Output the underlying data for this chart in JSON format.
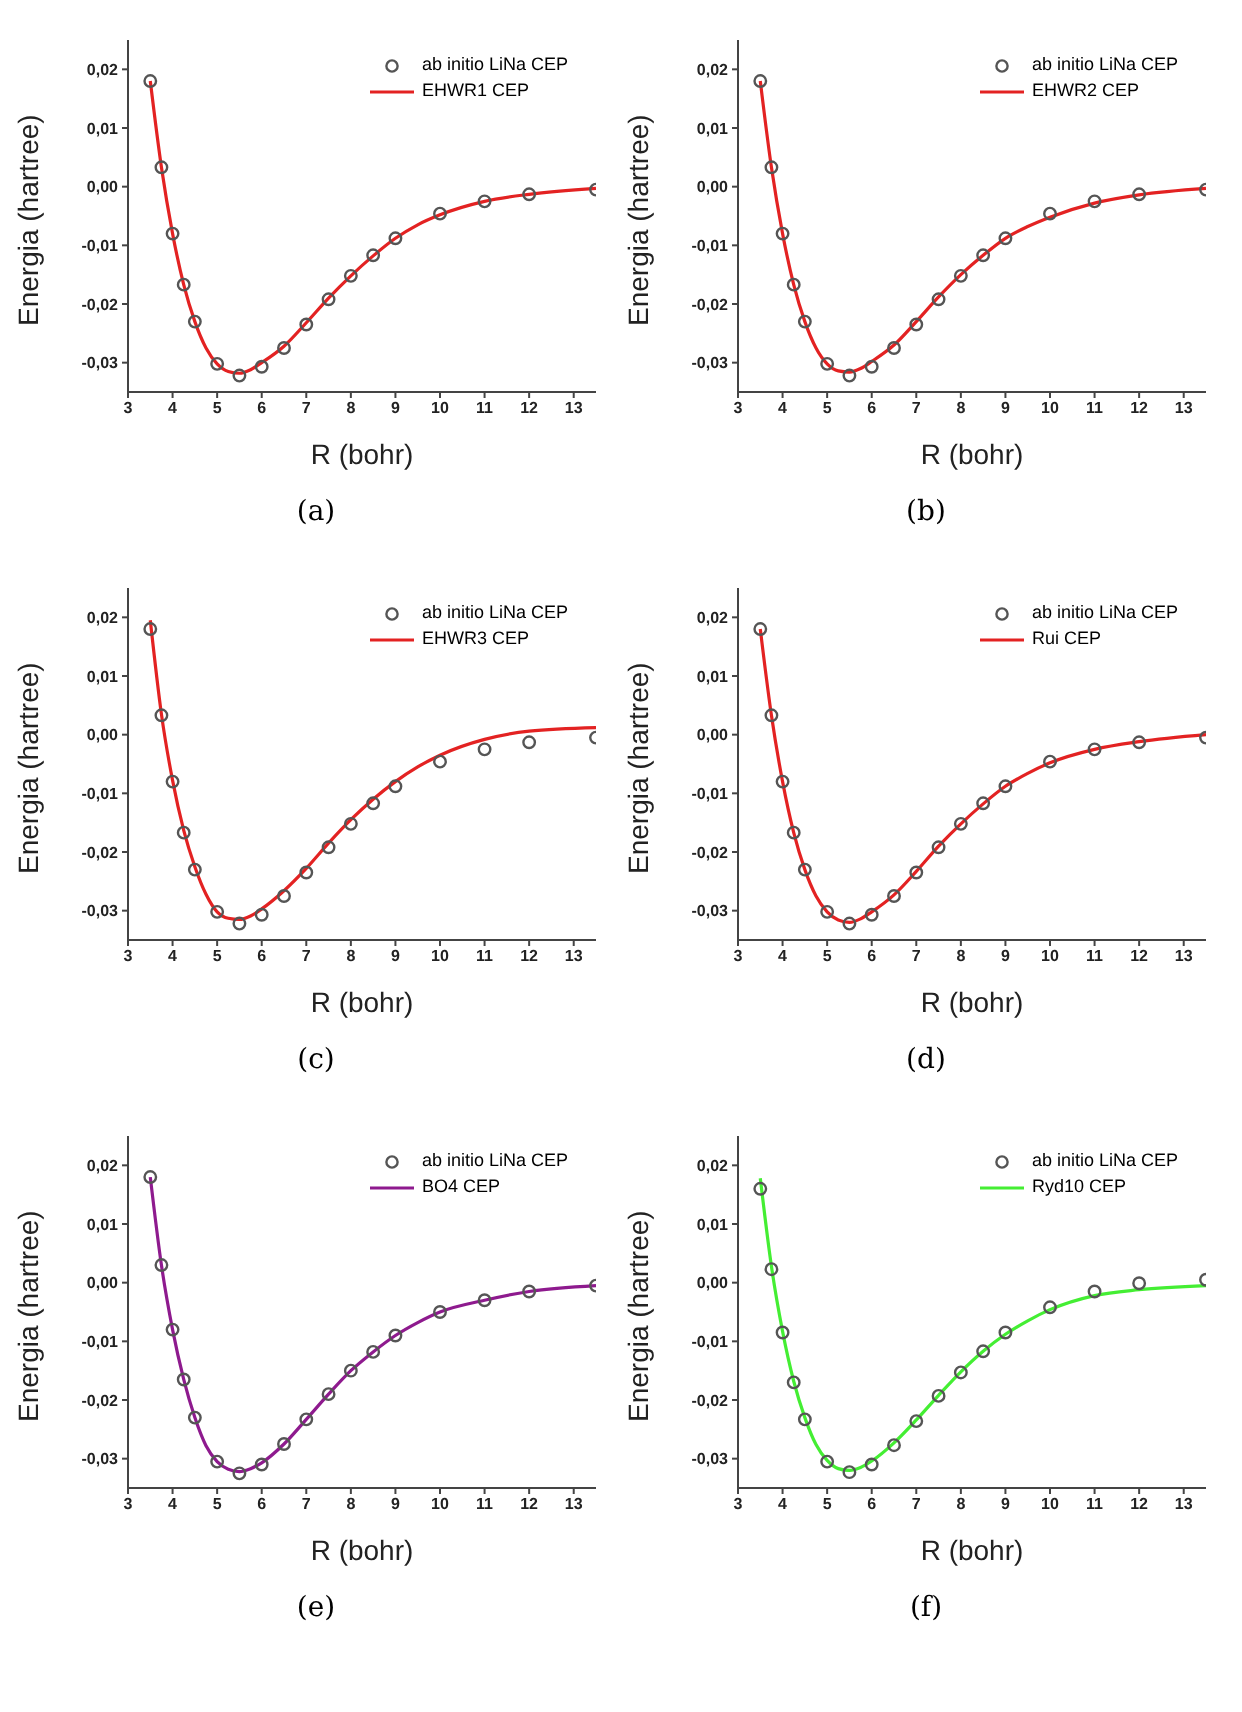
{
  "chart_data": [
    {
      "type": "line",
      "xlabel": "R (bohr)",
      "ylabel": "Energia (hartree)",
      "annotations": [
        "(a)"
      ],
      "xlim": [
        3,
        13.5
      ],
      "xticks": [
        3,
        4,
        5,
        6,
        7,
        8,
        9,
        10,
        11,
        12,
        13
      ],
      "ylim": [
        -0.035,
        0.025
      ],
      "yticks": [
        {
          "value": -0.03,
          "label": "-0,03"
        },
        {
          "value": -0.02,
          "label": "-0,02"
        },
        {
          "value": -0.01,
          "label": "-0,01"
        },
        {
          "value": 0,
          "label": "0,00"
        },
        {
          "value": 0.01,
          "label": "0,01"
        },
        {
          "value": 0.02,
          "label": "0,02"
        }
      ],
      "grid": false,
      "legend": "top right",
      "series": [
        {
          "name": "ab initio LiNa CEP",
          "type": "scatter",
          "marker": "circle",
          "color": "#555555",
          "x": [
            3.5,
            3.75,
            4,
            4.25,
            4.5,
            5,
            5.5,
            6,
            6.5,
            7,
            7.5,
            8,
            8.5,
            9,
            10,
            11,
            12,
            13.5
          ],
          "values": [
            0.018,
            0.0033,
            -0.008,
            -0.0167,
            -0.023,
            -0.0302,
            -0.0322,
            -0.0307,
            -0.0275,
            -0.0235,
            -0.0192,
            -0.0152,
            -0.0117,
            -0.0088,
            -0.0046,
            -0.0025,
            -0.0013,
            -0.0005
          ]
        },
        {
          "name": "EHWR1 CEP",
          "type": "line",
          "marker": "none",
          "line_style": "solid",
          "color": "#e32222",
          "x": [
            3.5,
            3.75,
            4,
            4.25,
            4.5,
            4.75,
            5,
            5.25,
            5.5,
            5.75,
            6,
            6.5,
            7,
            7.5,
            8,
            8.5,
            9,
            9.5,
            10,
            11,
            12,
            13.5
          ],
          "values": [
            0.018,
            0.0033,
            -0.008,
            -0.0167,
            -0.023,
            -0.0275,
            -0.0302,
            -0.0315,
            -0.0318,
            -0.0312,
            -0.03,
            -0.0272,
            -0.0232,
            -0.019,
            -0.0152,
            -0.0118,
            -0.0088,
            -0.0065,
            -0.0048,
            -0.0025,
            -0.0013,
            -0.0003
          ]
        }
      ]
    },
    {
      "type": "line",
      "xlabel": "R (bohr)",
      "ylabel": "Energia (hartree)",
      "annotations": [
        "(b)"
      ],
      "xlim": [
        3,
        13.5
      ],
      "xticks": [
        3,
        4,
        5,
        6,
        7,
        8,
        9,
        10,
        11,
        12,
        13
      ],
      "ylim": [
        -0.035,
        0.025
      ],
      "yticks": [
        {
          "value": -0.03,
          "label": "-0,03"
        },
        {
          "value": -0.02,
          "label": "-0,02"
        },
        {
          "value": -0.01,
          "label": "-0,01"
        },
        {
          "value": 0,
          "label": "0,00"
        },
        {
          "value": 0.01,
          "label": "0,01"
        },
        {
          "value": 0.02,
          "label": "0,02"
        }
      ],
      "grid": false,
      "legend": "top right",
      "series": [
        {
          "name": "ab initio LiNa CEP",
          "type": "scatter",
          "marker": "circle",
          "color": "#555555",
          "x": [
            3.5,
            3.75,
            4,
            4.25,
            4.5,
            5,
            5.5,
            6,
            6.5,
            7,
            7.5,
            8,
            8.5,
            9,
            10,
            11,
            12,
            13.5
          ],
          "values": [
            0.018,
            0.0033,
            -0.008,
            -0.0167,
            -0.023,
            -0.0302,
            -0.0322,
            -0.0307,
            -0.0275,
            -0.0235,
            -0.0192,
            -0.0152,
            -0.0117,
            -0.0088,
            -0.0046,
            -0.0025,
            -0.0013,
            -0.0005
          ]
        },
        {
          "name": "EHWR2 CEP",
          "type": "line",
          "marker": "none",
          "line_style": "solid",
          "color": "#e32222",
          "x": [
            3.5,
            3.75,
            4,
            4.25,
            4.5,
            4.75,
            5,
            5.25,
            5.5,
            5.75,
            6,
            6.5,
            7,
            7.5,
            8,
            8.5,
            9,
            9.5,
            10,
            11,
            12,
            13.5
          ],
          "values": [
            0.018,
            0.0033,
            -0.008,
            -0.0167,
            -0.023,
            -0.0275,
            -0.0302,
            -0.0314,
            -0.0316,
            -0.031,
            -0.0298,
            -0.027,
            -0.023,
            -0.0188,
            -0.015,
            -0.0117,
            -0.0088,
            -0.0068,
            -0.0052,
            -0.0028,
            -0.0014,
            -0.0003
          ]
        }
      ]
    },
    {
      "type": "line",
      "xlabel": "R (bohr)",
      "ylabel": "Energia (hartree)",
      "annotations": [
        "(c)"
      ],
      "xlim": [
        3,
        13.5
      ],
      "xticks": [
        3,
        4,
        5,
        6,
        7,
        8,
        9,
        10,
        11,
        12,
        13
      ],
      "ylim": [
        -0.035,
        0.025
      ],
      "yticks": [
        {
          "value": -0.03,
          "label": "-0,03"
        },
        {
          "value": -0.02,
          "label": "-0,02"
        },
        {
          "value": -0.01,
          "label": "-0,01"
        },
        {
          "value": 0,
          "label": "0,00"
        },
        {
          "value": 0.01,
          "label": "0,01"
        },
        {
          "value": 0.02,
          "label": "0,02"
        }
      ],
      "grid": false,
      "legend": "top right",
      "series": [
        {
          "name": "ab initio LiNa CEP",
          "type": "scatter",
          "marker": "circle",
          "color": "#555555",
          "x": [
            3.5,
            3.75,
            4,
            4.25,
            4.5,
            5,
            5.5,
            6,
            6.5,
            7,
            7.5,
            8,
            8.5,
            9,
            10,
            11,
            12,
            13.5
          ],
          "values": [
            0.018,
            0.0033,
            -0.008,
            -0.0167,
            -0.023,
            -0.0302,
            -0.0322,
            -0.0307,
            -0.0275,
            -0.0235,
            -0.0192,
            -0.0152,
            -0.0117,
            -0.0088,
            -0.0046,
            -0.0025,
            -0.0013,
            -0.0005
          ]
        },
        {
          "name": "EHWR3 CEP",
          "type": "line",
          "marker": "none",
          "line_style": "solid",
          "color": "#e32222",
          "x": [
            3.5,
            3.75,
            4,
            4.25,
            4.5,
            4.75,
            5,
            5.25,
            5.5,
            5.75,
            6,
            6.5,
            7,
            7.5,
            8,
            8.5,
            9,
            9.5,
            10,
            11,
            12,
            13.5
          ],
          "values": [
            0.0195,
            0.0035,
            -0.0078,
            -0.0163,
            -0.0225,
            -0.0272,
            -0.0302,
            -0.0313,
            -0.0315,
            -0.0309,
            -0.0297,
            -0.0266,
            -0.0228,
            -0.0185,
            -0.0145,
            -0.011,
            -0.008,
            -0.0055,
            -0.0035,
            -0.0008,
            0.0006,
            0.0012
          ]
        }
      ]
    },
    {
      "type": "line",
      "xlabel": "R (bohr)",
      "ylabel": "Energia (hartree)",
      "annotations": [
        "(d)"
      ],
      "xlim": [
        3,
        13.5
      ],
      "xticks": [
        3,
        4,
        5,
        6,
        7,
        8,
        9,
        10,
        11,
        12,
        13
      ],
      "ylim": [
        -0.035,
        0.025
      ],
      "yticks": [
        {
          "value": -0.03,
          "label": "-0,03"
        },
        {
          "value": -0.02,
          "label": "-0,02"
        },
        {
          "value": -0.01,
          "label": "-0,01"
        },
        {
          "value": 0,
          "label": "0,00"
        },
        {
          "value": 0.01,
          "label": "0,01"
        },
        {
          "value": 0.02,
          "label": "0,02"
        }
      ],
      "grid": false,
      "legend": "top right",
      "series": [
        {
          "name": "ab initio LiNa CEP",
          "type": "scatter",
          "marker": "circle",
          "color": "#555555",
          "x": [
            3.5,
            3.75,
            4,
            4.25,
            4.5,
            5,
            5.5,
            6,
            6.5,
            7,
            7.5,
            8,
            8.5,
            9,
            10,
            11,
            12,
            13.5
          ],
          "values": [
            0.018,
            0.0033,
            -0.008,
            -0.0167,
            -0.023,
            -0.0302,
            -0.0322,
            -0.0307,
            -0.0275,
            -0.0235,
            -0.0192,
            -0.0152,
            -0.0117,
            -0.0088,
            -0.0046,
            -0.0025,
            -0.0013,
            -0.0005
          ]
        },
        {
          "name": "Rui CEP",
          "type": "line",
          "marker": "none",
          "line_style": "solid",
          "color": "#e32222",
          "x": [
            3.5,
            3.75,
            4,
            4.25,
            4.5,
            4.75,
            5,
            5.25,
            5.5,
            5.75,
            6,
            6.5,
            7,
            7.5,
            8,
            8.5,
            9,
            9.5,
            10,
            11,
            12,
            13.5
          ],
          "values": [
            0.018,
            0.0033,
            -0.008,
            -0.0167,
            -0.023,
            -0.0275,
            -0.0302,
            -0.0316,
            -0.032,
            -0.0314,
            -0.0302,
            -0.0273,
            -0.0233,
            -0.019,
            -0.0152,
            -0.0118,
            -0.0088,
            -0.0066,
            -0.0048,
            -0.0025,
            -0.0012,
            0
          ]
        }
      ]
    },
    {
      "type": "line",
      "xlabel": "R (bohr)",
      "ylabel": "Energia (hartree)",
      "annotations": [
        "(e)"
      ],
      "xlim": [
        3,
        13.5
      ],
      "xticks": [
        3,
        4,
        5,
        6,
        7,
        8,
        9,
        10,
        11,
        12,
        13
      ],
      "ylim": [
        -0.035,
        0.025
      ],
      "yticks": [
        {
          "value": -0.03,
          "label": "-0,03"
        },
        {
          "value": -0.02,
          "label": "-0,02"
        },
        {
          "value": -0.01,
          "label": "-0,01"
        },
        {
          "value": 0,
          "label": "0,00"
        },
        {
          "value": 0.01,
          "label": "0,01"
        },
        {
          "value": 0.02,
          "label": "0,02"
        }
      ],
      "grid": false,
      "legend": "top right",
      "series": [
        {
          "name": "ab initio LiNa CEP",
          "type": "scatter",
          "marker": "circle",
          "color": "#555555",
          "x": [
            3.5,
            3.75,
            4,
            4.25,
            4.5,
            5,
            5.5,
            6,
            6.5,
            7,
            7.5,
            8,
            8.5,
            9,
            10,
            11,
            12,
            13.5
          ],
          "values": [
            0.018,
            0.003,
            -0.008,
            -0.0165,
            -0.023,
            -0.0305,
            -0.0325,
            -0.031,
            -0.0275,
            -0.0233,
            -0.019,
            -0.015,
            -0.0118,
            -0.009,
            -0.005,
            -0.003,
            -0.0015,
            -0.0005
          ]
        },
        {
          "name": "BO4 CEP",
          "type": "line",
          "marker": "none",
          "line_style": "solid",
          "color": "#8e1a8e",
          "x": [
            3.5,
            3.75,
            4,
            4.25,
            4.5,
            4.75,
            5,
            5.25,
            5.5,
            5.75,
            6,
            6.5,
            7,
            7.5,
            8,
            8.5,
            9,
            9.5,
            10,
            11,
            12,
            13.5
          ],
          "values": [
            0.018,
            0.003,
            -0.008,
            -0.0165,
            -0.023,
            -0.0278,
            -0.0305,
            -0.0318,
            -0.0322,
            -0.0317,
            -0.0307,
            -0.0275,
            -0.0233,
            -0.019,
            -0.015,
            -0.0118,
            -0.009,
            -0.0068,
            -0.005,
            -0.003,
            -0.0015,
            -0.0005
          ]
        }
      ]
    },
    {
      "type": "line",
      "xlabel": "R (bohr)",
      "ylabel": "Energia (hartree)",
      "annotations": [
        "(f)"
      ],
      "xlim": [
        3,
        13.5
      ],
      "xticks": [
        3,
        4,
        5,
        6,
        7,
        8,
        9,
        10,
        11,
        12,
        13
      ],
      "ylim": [
        -0.035,
        0.025
      ],
      "yticks": [
        {
          "value": -0.03,
          "label": "-0,03"
        },
        {
          "value": -0.02,
          "label": "-0,02"
        },
        {
          "value": -0.01,
          "label": "-0,01"
        },
        {
          "value": 0,
          "label": "0,00"
        },
        {
          "value": 0.01,
          "label": "0,01"
        },
        {
          "value": 0.02,
          "label": "0,02"
        }
      ],
      "grid": false,
      "legend": "top right",
      "series": [
        {
          "name": "ab initio LiNa CEP",
          "type": "scatter",
          "marker": "circle",
          "color": "#555555",
          "x": [
            3.5,
            3.75,
            4,
            4.25,
            4.5,
            5,
            5.5,
            6,
            6.5,
            7,
            7.5,
            8,
            8.5,
            9,
            10,
            11,
            12,
            13.5
          ],
          "values": [
            0.016,
            0.0023,
            -0.0085,
            -0.017,
            -0.0233,
            -0.0305,
            -0.0323,
            -0.031,
            -0.0277,
            -0.0236,
            -0.0193,
            -0.0153,
            -0.0117,
            -0.0085,
            -0.0042,
            -0.0015,
            -0.0001,
            0.0005
          ]
        },
        {
          "name": "Ryd10 CEP",
          "type": "line",
          "marker": "none",
          "line_style": "solid",
          "color": "#44ee33",
          "x": [
            3.5,
            3.75,
            4,
            4.25,
            4.5,
            4.75,
            5,
            5.25,
            5.5,
            5.75,
            6,
            6.5,
            7,
            7.5,
            8,
            8.5,
            9,
            9.5,
            10,
            11,
            12,
            13.5
          ],
          "values": [
            0.0178,
            0.0028,
            -0.0083,
            -0.0168,
            -0.023,
            -0.0276,
            -0.0303,
            -0.0317,
            -0.032,
            -0.0315,
            -0.0304,
            -0.0273,
            -0.0234,
            -0.0192,
            -0.0152,
            -0.0117,
            -0.0088,
            -0.0065,
            -0.0046,
            -0.0022,
            -0.0012,
            -0.0005
          ]
        }
      ]
    }
  ]
}
